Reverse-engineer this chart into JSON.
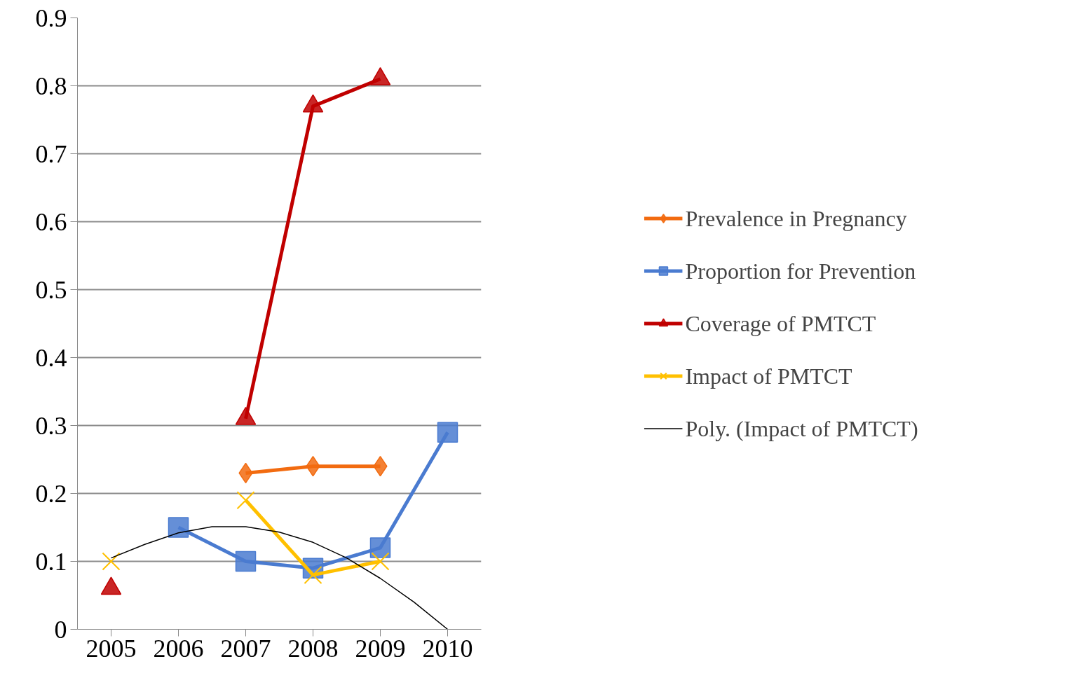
{
  "chart_data": {
    "type": "line",
    "x": [
      2005,
      2006,
      2007,
      2008,
      2009,
      2010
    ],
    "xlim": [
      2004.5,
      2010.5
    ],
    "xticks": [
      2005,
      2006,
      2007,
      2008,
      2009,
      2010
    ],
    "ylim": [
      0,
      0.9
    ],
    "yticks": [
      0,
      0.1,
      0.2,
      0.3,
      0.4,
      0.5,
      0.6,
      0.7,
      0.8,
      0.9
    ],
    "grid": "y",
    "legend": "right",
    "series": [
      {
        "name": "Prevalence in Pregnancy",
        "color": "#f26b10",
        "marker": "diamond",
        "values": [
          null,
          null,
          0.23,
          0.24,
          0.24,
          null
        ]
      },
      {
        "name": "Proportion for Prevention",
        "color": "#4a7bd0",
        "marker": "square",
        "values": [
          null,
          0.15,
          0.1,
          0.09,
          0.12,
          0.29
        ]
      },
      {
        "name": "Coverage of PMTCT",
        "color": "#c00000",
        "marker": "triangle",
        "values": [
          0.06,
          null,
          0.31,
          0.77,
          0.81,
          null
        ]
      },
      {
        "name": "Impact of PMTCT",
        "color": "#ffc000",
        "marker": "cross",
        "values": [
          0.1,
          null,
          0.19,
          0.08,
          0.1,
          null
        ]
      },
      {
        "name": "Poly. (Impact of PMTCT)",
        "color": "#000000",
        "marker": "none",
        "x": [
          2005,
          2005.5,
          2006,
          2006.5,
          2007,
          2007.5,
          2008,
          2008.5,
          2009,
          2009.5,
          2010
        ],
        "values": [
          0.105,
          0.125,
          0.142,
          0.151,
          0.151,
          0.143,
          0.128,
          0.105,
          0.075,
          0.04,
          0.0
        ]
      }
    ]
  }
}
